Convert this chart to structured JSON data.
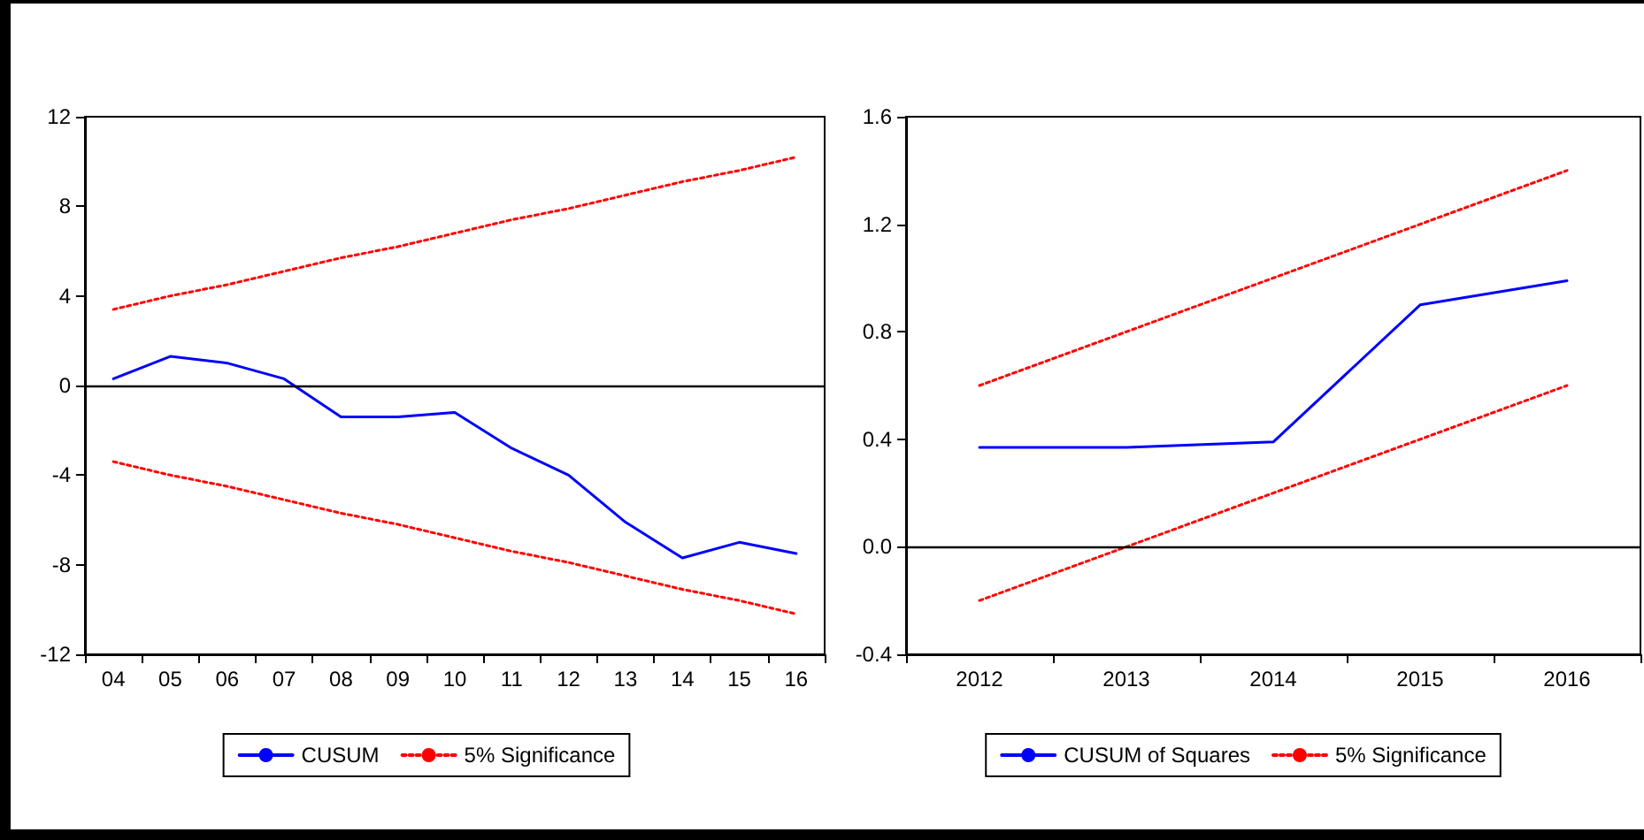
{
  "chart_data": [
    {
      "type": "line",
      "categories": [
        "04",
        "05",
        "06",
        "07",
        "08",
        "09",
        "10",
        "11",
        "12",
        "13",
        "14",
        "15",
        "16"
      ],
      "series": [
        {
          "name": "CUSUM",
          "color": "#0000ff",
          "line_style": "solid",
          "values": [
            0.3,
            1.3,
            1.0,
            0.3,
            -1.4,
            -1.4,
            -1.2,
            -2.8,
            -4.0,
            -6.1,
            -7.7,
            -7.0,
            -7.5
          ]
        },
        {
          "name": "5% Significance",
          "color": "#ff0000",
          "line_style": "dotted",
          "values": [
            3.4,
            4.0,
            4.5,
            5.1,
            5.7,
            6.2,
            6.8,
            7.4,
            7.9,
            8.5,
            9.1,
            9.6,
            10.2
          ]
        },
        {
          "color": "#ff0000",
          "line_style": "dotted",
          "values": [
            -3.4,
            -4.0,
            -4.5,
            -5.1,
            -5.7,
            -6.2,
            -6.8,
            -7.4,
            -7.9,
            -8.5,
            -9.1,
            -9.6,
            -10.2
          ]
        }
      ],
      "ylim": [
        -12,
        12
      ],
      "yticks": [
        -12,
        -8,
        -4,
        0,
        4,
        8,
        12
      ],
      "ref_lines": [
        {
          "axis": "y",
          "value": 0,
          "color": "#000000"
        }
      ],
      "grid": false,
      "legend": "bottom",
      "marker": "none"
    },
    {
      "type": "line",
      "categories": [
        "2012",
        "2013",
        "2014",
        "2015",
        "2016"
      ],
      "series": [
        {
          "name": "CUSUM of Squares",
          "color": "#0000ff",
          "line_style": "solid",
          "values": [
            0.37,
            0.37,
            0.39,
            0.9,
            0.99
          ]
        },
        {
          "name": "5% Significance",
          "color": "#ff0000",
          "line_style": "dotted",
          "values": [
            0.6,
            0.8,
            1.0,
            1.2,
            1.4
          ]
        },
        {
          "color": "#ff0000",
          "line_style": "dotted",
          "values": [
            -0.2,
            0.0,
            0.2,
            0.4,
            0.6
          ]
        }
      ],
      "ylim": [
        -0.4,
        1.6
      ],
      "yticks": [
        -0.4,
        {
          "value": 0,
          "label": "0.0"
        },
        0.4,
        0.8,
        1.2,
        1.6
      ],
      "ref_lines": [
        {
          "axis": "y",
          "value": 0,
          "color": "#000000"
        }
      ],
      "grid": false,
      "legend": "bottom",
      "marker": "none"
    }
  ]
}
